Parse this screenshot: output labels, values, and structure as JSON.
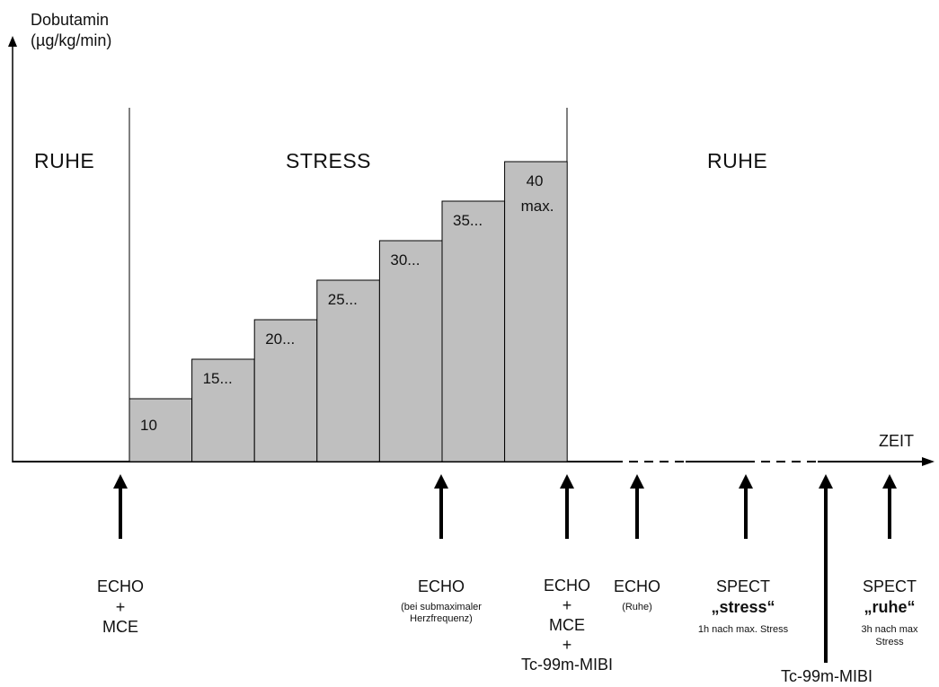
{
  "axis": {
    "y_label_line1": "Dobutamin",
    "y_label_line2": "(µg/kg/min)",
    "x_label": "ZEIT"
  },
  "phases": {
    "rest_before": "RUHE",
    "stress": "STRESS",
    "rest_after": "RUHE"
  },
  "dose_steps": [
    {
      "label": "10",
      "sub": "",
      "level": 1
    },
    {
      "label": "15...",
      "sub": "",
      "level": 2
    },
    {
      "label": "20...",
      "sub": "",
      "level": 3
    },
    {
      "label": "25...",
      "sub": "",
      "level": 4
    },
    {
      "label": "30...",
      "sub": "",
      "level": 5
    },
    {
      "label": "35...",
      "sub": "",
      "level": 6
    },
    {
      "label": "40",
      "sub": "max.",
      "level": 7
    }
  ],
  "events": {
    "echo_mce": {
      "line1": "ECHO",
      "line2": "+",
      "line3": "MCE"
    },
    "echo_submax": {
      "line1": "ECHO",
      "note1": "(bei submaximaler",
      "note2": "Herzfrequenz)"
    },
    "echo_mce_tc": {
      "line1": "ECHO",
      "line2": "+",
      "line3": "MCE",
      "line4": "+",
      "line5": "Tc-99m-MIBI"
    },
    "echo_rest": {
      "line1": "ECHO",
      "note1": "(Ruhe)"
    },
    "spect_stress": {
      "line1": "SPECT",
      "line2": "„stress“",
      "note1": "1h nach max. Stress"
    },
    "tc_injection": {
      "line1": "Tc-99m-MIBI"
    },
    "spect_rest": {
      "line1": "SPECT",
      "line2": "„ruhe“",
      "note1": "3h nach max",
      "note2": "Stress"
    }
  },
  "colors": {
    "bar_fill": "#bfbfbf",
    "line": "#000000"
  }
}
